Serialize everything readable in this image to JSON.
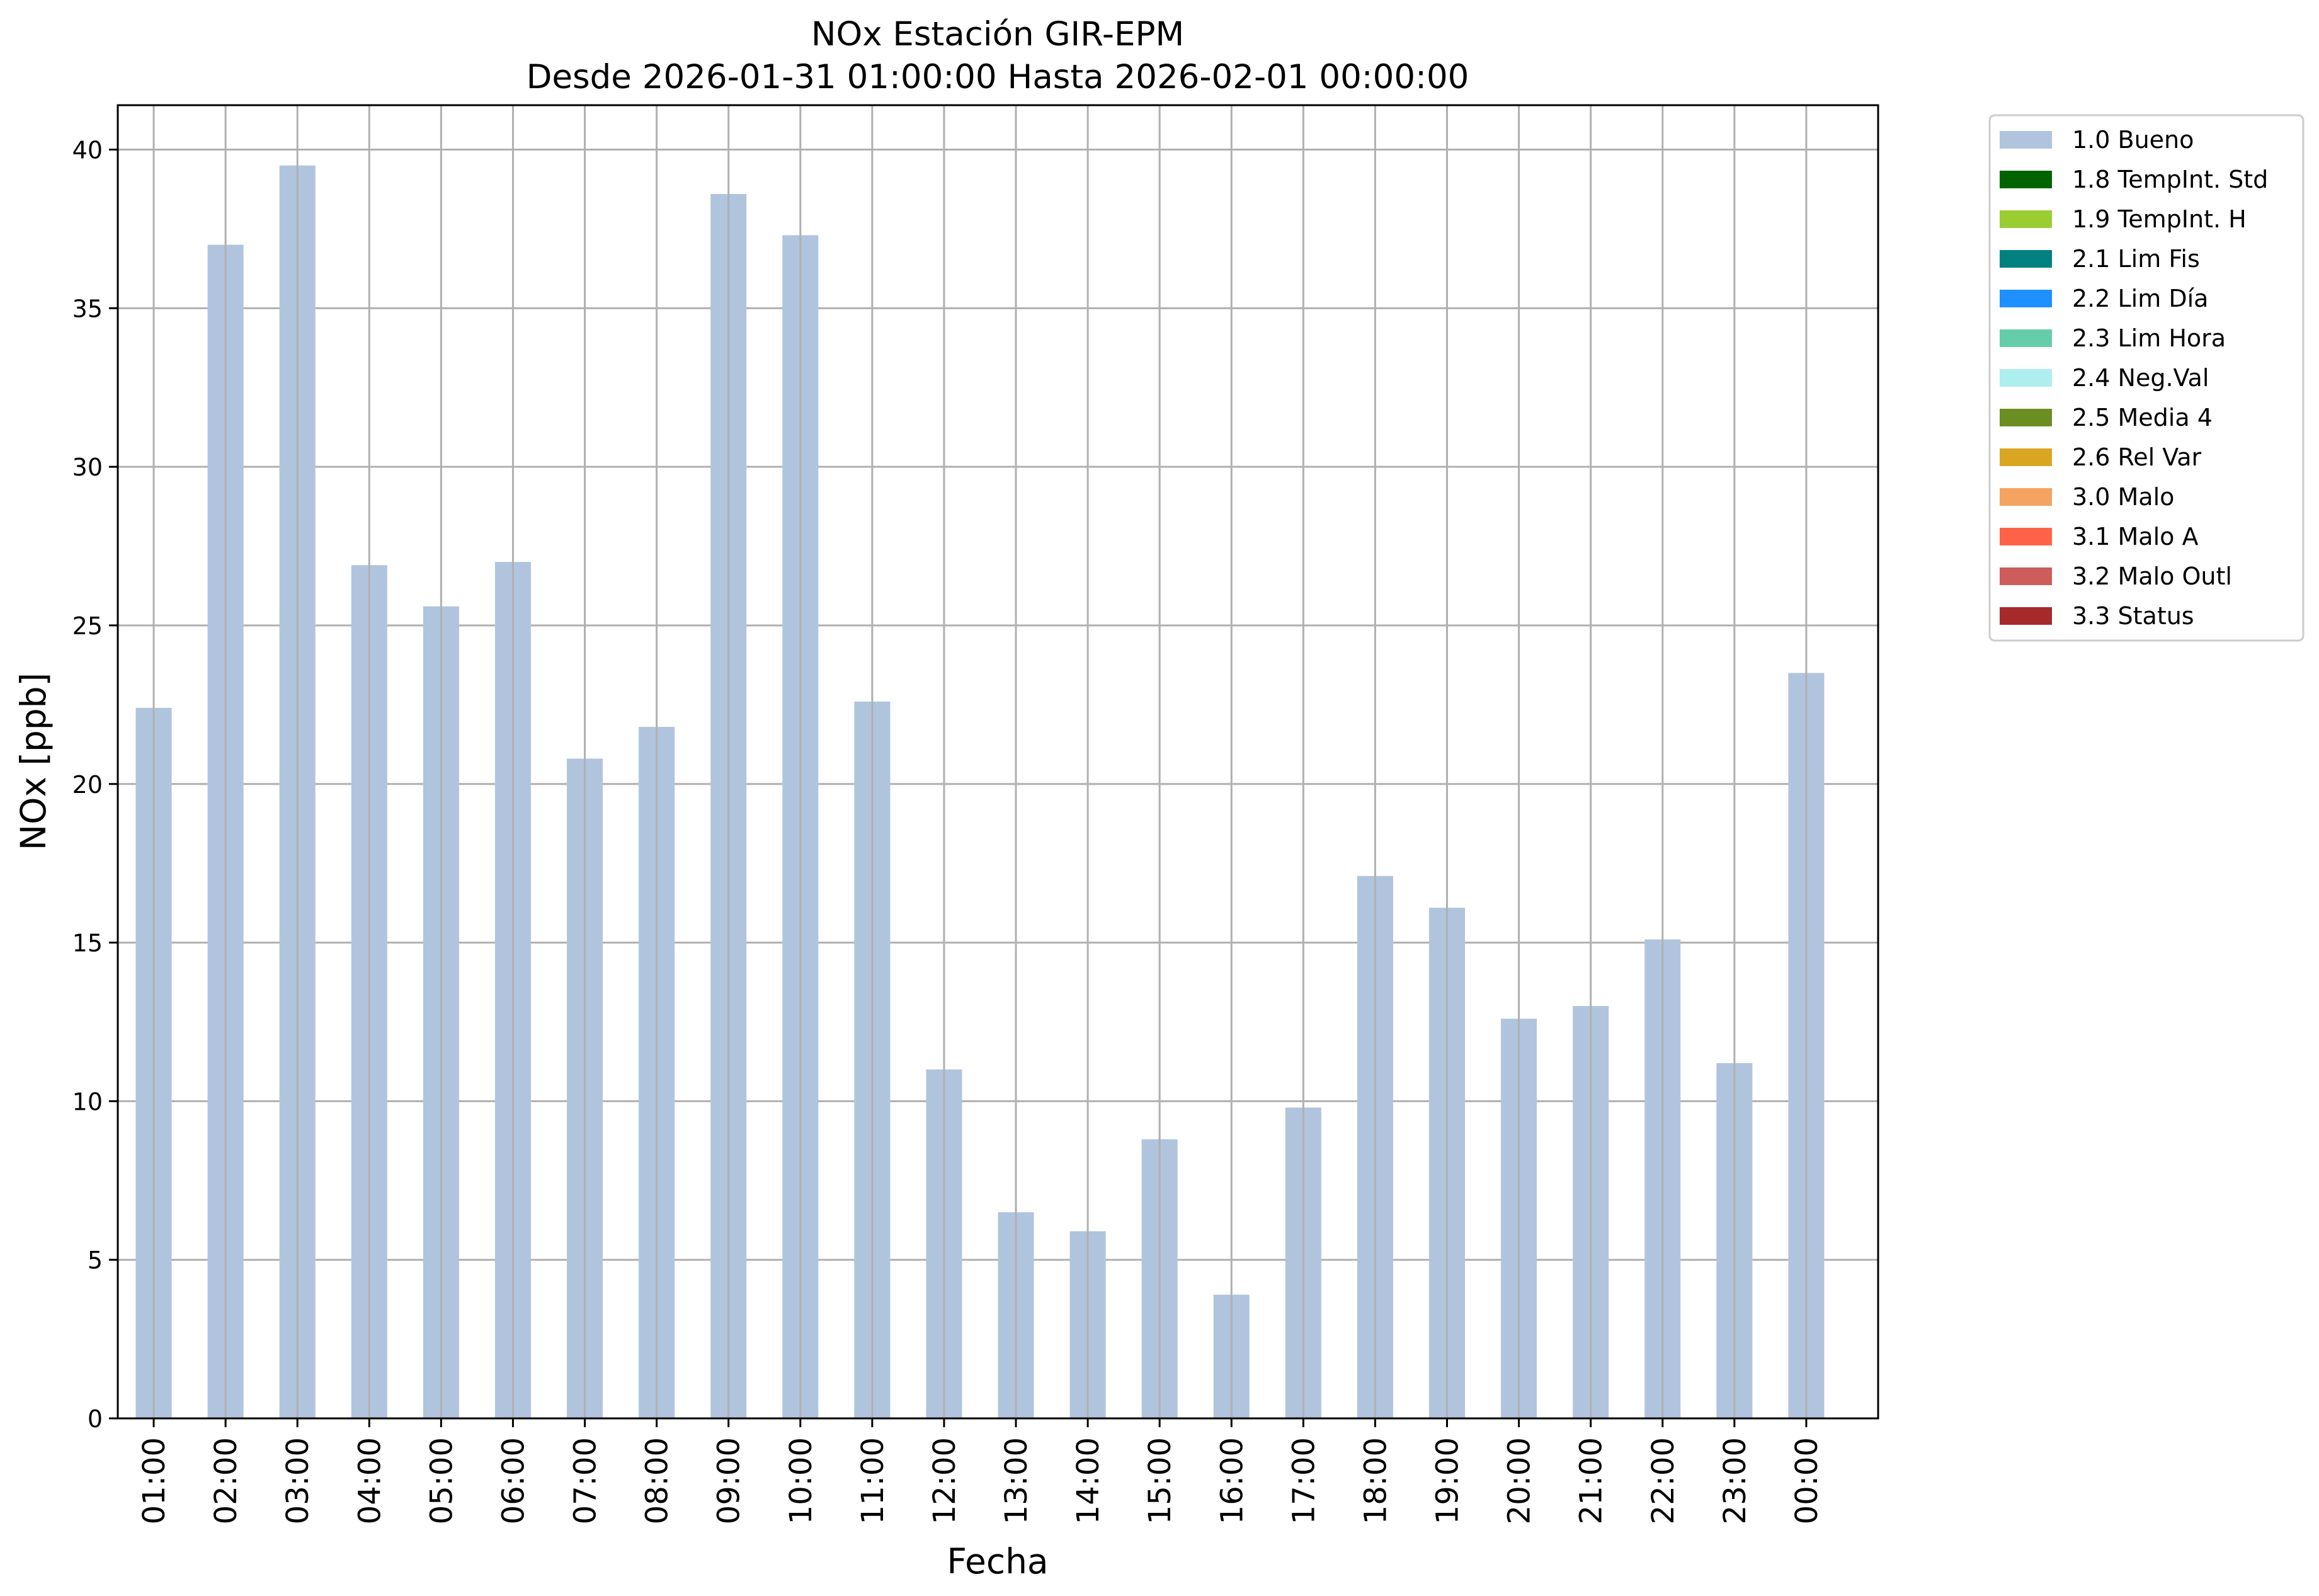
{
  "chart_data": {
    "type": "bar",
    "title_line1": "NOx Estación GIR-EPM",
    "title_line2": "Desde 2026-01-31 01:00:00 Hasta 2026-02-01 00:00:00",
    "xlabel": "Fecha",
    "ylabel": "NOx [ppb]",
    "ylim": [
      0,
      41.4
    ],
    "yticks": [
      "0",
      "5",
      "10",
      "15",
      "20",
      "25",
      "30",
      "35",
      "40"
    ],
    "grid": true,
    "legend_position": "outside-top-right",
    "bar_color": "#b0c4de",
    "categories": [
      "01:00",
      "02:00",
      "03:00",
      "04:00",
      "05:00",
      "06:00",
      "07:00",
      "08:00",
      "09:00",
      "10:00",
      "11:00",
      "12:00",
      "13:00",
      "14:00",
      "15:00",
      "16:00",
      "17:00",
      "18:00",
      "19:00",
      "20:00",
      "21:00",
      "22:00",
      "23:00",
      "00:00"
    ],
    "series": [
      {
        "name": "1.0 Bueno",
        "values": [
          22.4,
          37.0,
          39.5,
          26.9,
          25.6,
          27.0,
          20.8,
          21.8,
          38.6,
          37.3,
          22.6,
          11.0,
          6.5,
          5.9,
          8.8,
          3.9,
          9.8,
          17.1,
          16.1,
          12.6,
          13.0,
          15.1,
          11.2,
          23.5
        ]
      }
    ],
    "legend": [
      {
        "label": "1.0 Bueno",
        "color": "#b0c4de"
      },
      {
        "label": "1.8 TempInt. Std",
        "color": "#006400"
      },
      {
        "label": "1.9 TempInt. H",
        "color": "#9acd32"
      },
      {
        "label": "2.1 Lim Fis",
        "color": "#008080"
      },
      {
        "label": "2.2 Lim Día",
        "color": "#1e90ff"
      },
      {
        "label": "2.3 Lim Hora",
        "color": "#66cdaa"
      },
      {
        "label": "2.4 Neg.Val",
        "color": "#afeeee"
      },
      {
        "label": "2.5 Media 4",
        "color": "#6b8e23"
      },
      {
        "label": "2.6 Rel Var",
        "color": "#daa520"
      },
      {
        "label": "3.0 Malo",
        "color": "#f4a460"
      },
      {
        "label": "3.1 Malo A",
        "color": "#ff6347"
      },
      {
        "label": "3.2 Malo Outl",
        "color": "#cd5c5c"
      },
      {
        "label": "3.3 Status",
        "color": "#a52a2a"
      }
    ]
  }
}
